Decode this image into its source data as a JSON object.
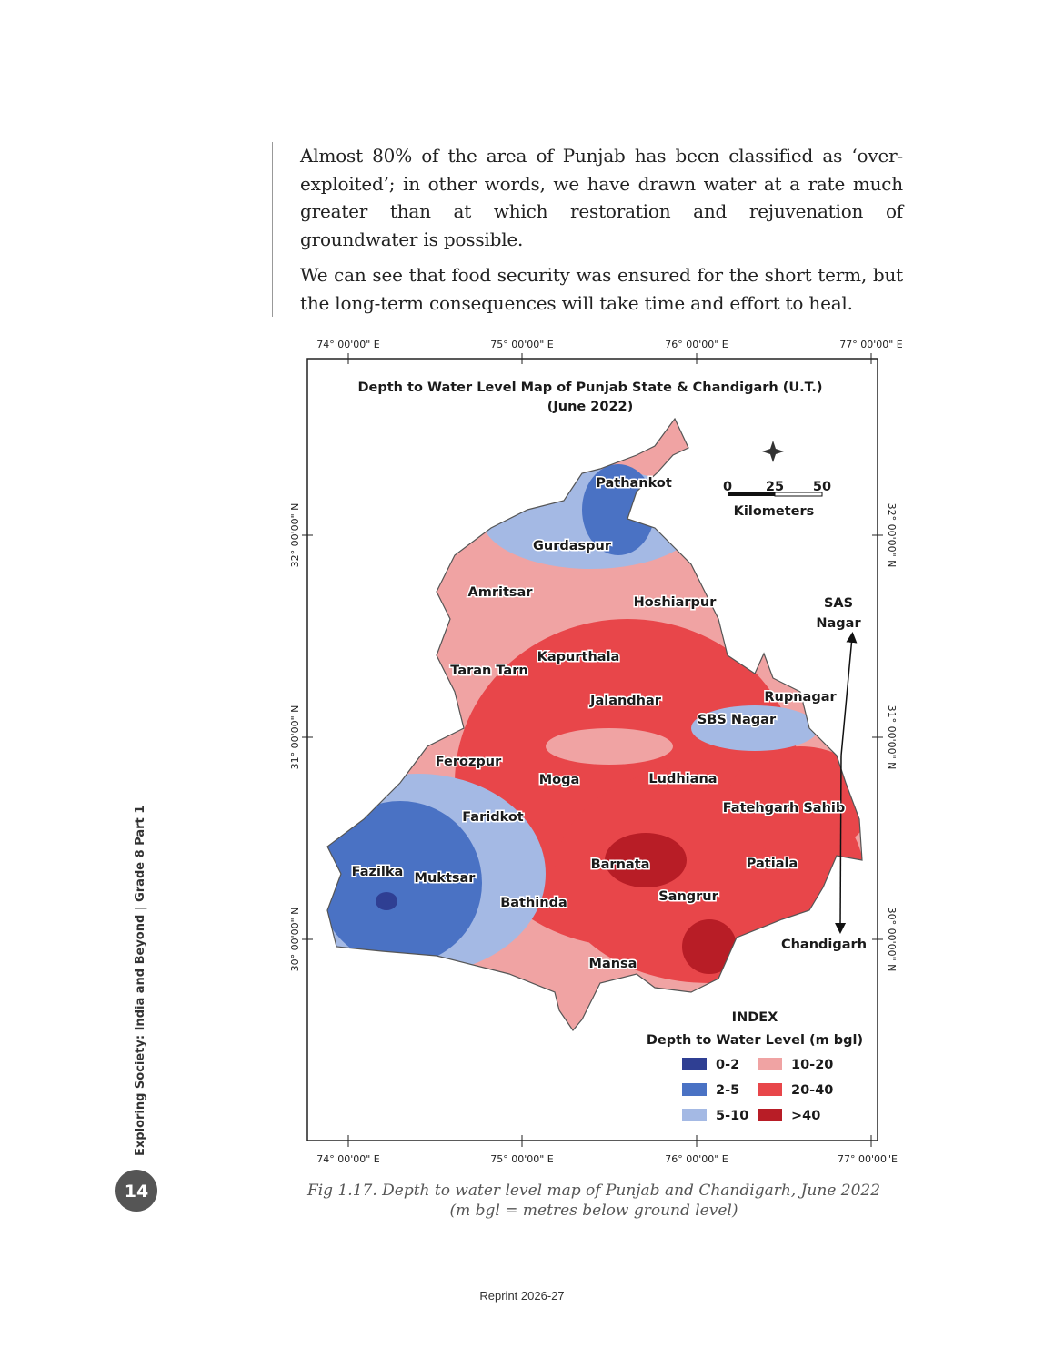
{
  "body": {
    "paragraphs": [
      "Almost 80% of the area of Punjab has been classified as ‘over-exploited’; in other words, we have drawn water at a rate much greater than at which restoration and rejuvenation of groundwater is possible.",
      "We can see that food security was ensured for the short term, but the long-term consequences will take time and effort to heal."
    ]
  },
  "figure": {
    "title_lines": [
      "Depth to Water Level Map of Punjab State & Chandigarh (U.T.)",
      "(June 2022)"
    ],
    "top_axis_labels": [
      "74° 00'00\" E",
      "75° 00'00\" E",
      "76° 00'00\" E",
      "77° 00'00\" E"
    ],
    "bottom_axis_labels": [
      "74° 00'00\" E",
      "75° 00'00\" E",
      "76° 00'00\" E",
      "77° 00'00\"E"
    ],
    "left_axis_labels": [
      "32° 00'00\" N",
      "31° 00'00\" N",
      "30° 00'00\" N"
    ],
    "right_axis_labels": [
      "32° 00'00\" N",
      "31° 00'00\" N",
      "30° 00'00\" N"
    ],
    "scale": {
      "ticks": [
        "0",
        "25",
        "50"
      ],
      "unit": "Kilometers"
    },
    "districts": [
      "Pathankot",
      "Gurdaspur",
      "Amritsar",
      "Hoshiarpur",
      "Kapurthala",
      "Taran Tarn",
      "Jalandhar",
      "Rupnagar",
      "SBS Nagar",
      "Ferozpur",
      "Moga",
      "Ludhiana",
      "Fatehgarh Sahib",
      "Faridkot",
      "Fazilka",
      "Muktsar",
      "Barnata",
      "Patiala",
      "Bathinda",
      "Sangrur",
      "Mansa"
    ],
    "annotations": {
      "sas_nagar": [
        "SAS",
        "Nagar"
      ],
      "chandigarh": "Chandigarh"
    },
    "legend": {
      "heading": "INDEX",
      "title": "Depth to Water Level (m bgl)",
      "items": [
        {
          "label": "0-2",
          "color": "#2f3f93"
        },
        {
          "label": "2-5",
          "color": "#4a72c4"
        },
        {
          "label": "5-10",
          "color": "#a4b9e4"
        },
        {
          "label": "10-20",
          "color": "#f0a3a3"
        },
        {
          "label": "20-40",
          "color": "#e8464a"
        },
        {
          "label": ">40",
          "color": "#b81d26"
        }
      ]
    },
    "caption": [
      "Fig 1.17. Depth to water level map of Punjab and Chandigarh, June 2022",
      "(m bgl = metres below ground level)"
    ]
  },
  "sidebar": {
    "running_title": "Exploring Society: India and Beyond | Grade 8 Part 1",
    "page_number": "14"
  },
  "footer": "Reprint 2026-27"
}
